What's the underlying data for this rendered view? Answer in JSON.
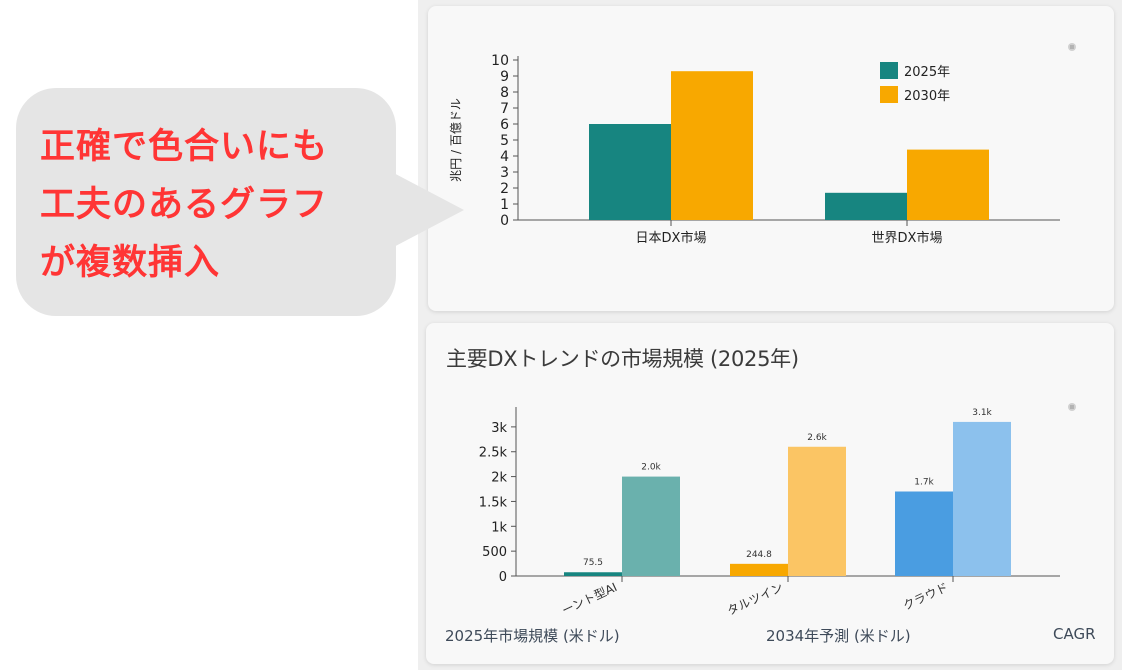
{
  "callout": {
    "lines": [
      "正確で色合いにも",
      "工夫のあるグラフ",
      "が複数挿入"
    ]
  },
  "colors": {
    "teal": "#178580",
    "orange": "#f8a800",
    "teal_light": "#6ab1ad",
    "orange_light": "#fbc564",
    "blue": "#4a9de1",
    "blue_light": "#8cc1ed",
    "callout_text": "#ff3535"
  },
  "chart1": {
    "ylabel": "兆円 / 百億ドル",
    "yticks": [
      "0",
      "1",
      "2",
      "3",
      "4",
      "5",
      "6",
      "7",
      "8",
      "9",
      "10"
    ],
    "legend": [
      "2025年",
      "2030年"
    ],
    "menu_icon": "context-menu-icon"
  },
  "chart2": {
    "title": "主要DXトレンドの市場規模 (2025年)",
    "yticks": [
      "0",
      "500",
      "1k",
      "1.5k",
      "2k",
      "2.5k",
      "3k"
    ],
    "menu_icon": "context-menu-icon",
    "footer": {
      "col1": "2025年市場規模 (米ドル)",
      "col2": "2034年予測 (米ドル)",
      "col3": "CAGR"
    }
  },
  "chart_data": [
    {
      "type": "bar",
      "categories": [
        "日本DX市場",
        "世界DX市場"
      ],
      "series": [
        {
          "name": "2025年",
          "values": [
            6.0,
            1.7
          ]
        },
        {
          "name": "2030年",
          "values": [
            9.3,
            4.4
          ]
        }
      ],
      "title": "",
      "xlabel": "",
      "ylabel": "兆円 / 百億ドル",
      "ylim": [
        0,
        10
      ],
      "legend": "top-right",
      "grid": false
    },
    {
      "type": "bar",
      "categories": [
        "エージェント型AI",
        "デジタルツイン",
        "クラウド"
      ],
      "visible_category_labels": [
        "ーント型AI",
        "タルツイン",
        "クラウド"
      ],
      "pairs": [
        {
          "category": "エージェント型AI",
          "values": [
            75.5,
            2000
          ],
          "labels": [
            "75.5",
            "2.0k"
          ]
        },
        {
          "category": "デジタルツイン",
          "values": [
            244.8,
            2600
          ],
          "labels": [
            "244.8",
            "2.6k"
          ]
        },
        {
          "category": "クラウド",
          "values": [
            1700,
            3100
          ],
          "labels": [
            "1.7k",
            "3.1k"
          ]
        }
      ],
      "title": "主要DXトレンドの市場規模 (2025年)",
      "xlabel": "",
      "ylabel": "",
      "ylim": [
        0,
        3400
      ],
      "legend": "none",
      "grid": false
    }
  ]
}
